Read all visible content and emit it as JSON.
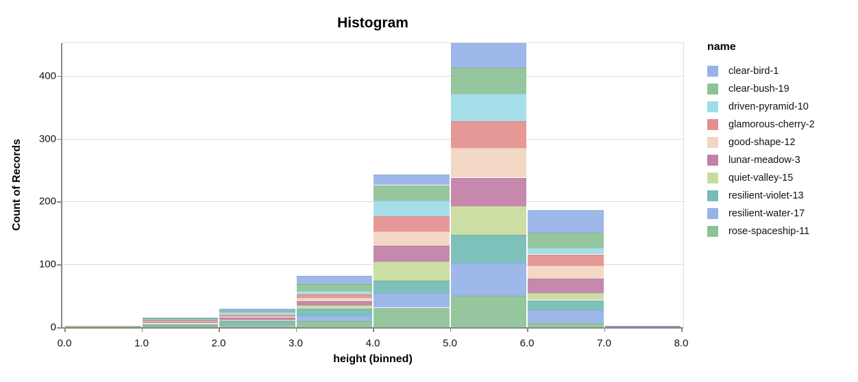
{
  "title": "Histogram",
  "axes": {
    "x": {
      "title": "height (binned)",
      "tick_labels": [
        "0.0",
        "1.0",
        "2.0",
        "3.0",
        "4.0",
        "5.0",
        "6.0",
        "7.0",
        "8.0"
      ]
    },
    "y": {
      "title": "Count of Records",
      "tick_labels": [
        "0",
        "100",
        "200",
        "300",
        "400"
      ],
      "tick_values": [
        0,
        100,
        200,
        300,
        400
      ]
    }
  },
  "legend": {
    "title": "name"
  },
  "colors": {
    "background": "#ffffff",
    "gridline": "#dddddd",
    "axis_line": "#888888"
  },
  "chart_data": {
    "type": "bar",
    "stacked": true,
    "title": "Histogram",
    "xlabel": "height (binned)",
    "ylabel": "Count of Records",
    "bin_edges": [
      0,
      1,
      2,
      3,
      4,
      5,
      6,
      7,
      8
    ],
    "categories": [
      "0-1",
      "1-2",
      "2-3",
      "3-4",
      "4-5",
      "5-6",
      "6-7",
      "7-8"
    ],
    "xlim": [
      0,
      8
    ],
    "ylim": [
      0,
      452
    ],
    "grid": true,
    "legend_position": "right",
    "bar_totals": [
      2,
      15,
      30,
      82,
      243,
      452,
      186,
      2
    ],
    "series": [
      {
        "name": "clear-bird-1",
        "color": "#95b3e8",
        "values": [
          0,
          1,
          4,
          13,
          17,
          39,
          36,
          1
        ]
      },
      {
        "name": "clear-bush-19",
        "color": "#8ec295",
        "values": [
          0,
          2,
          2,
          11,
          24,
          42,
          24,
          0
        ]
      },
      {
        "name": "driven-pyramid-10",
        "color": "#9fdde8",
        "values": [
          0,
          1,
          4,
          6,
          26,
          43,
          10,
          0
        ]
      },
      {
        "name": "glamorous-cherry-2",
        "color": "#e4908f",
        "values": [
          0,
          2,
          3,
          5,
          24,
          43,
          18,
          0
        ]
      },
      {
        "name": "good-shape-12",
        "color": "#f2d5c2",
        "values": [
          0,
          1,
          2,
          6,
          22,
          47,
          21,
          0
        ]
      },
      {
        "name": "lunar-meadow-3",
        "color": "#c27fa7",
        "values": [
          0,
          2,
          3,
          6,
          25,
          45,
          23,
          1
        ]
      },
      {
        "name": "quiet-valley-15",
        "color": "#c9dc9e",
        "values": [
          1,
          1,
          2,
          6,
          31,
          46,
          11,
          0
        ]
      },
      {
        "name": "resilient-violet-13",
        "color": "#74bcb6",
        "values": [
          0,
          2,
          3,
          10,
          20,
          45,
          16,
          0
        ]
      },
      {
        "name": "resilient-water-17",
        "color": "#95b3e8",
        "values": [
          0,
          1,
          3,
          9,
          23,
          52,
          20,
          0
        ]
      },
      {
        "name": "rose-spaceship-11",
        "color": "#8ec295",
        "values": [
          1,
          2,
          4,
          10,
          31,
          50,
          7,
          0
        ]
      }
    ],
    "stack_order_note": "bottom of stack = last legend entry, top of stack = first legend entry"
  }
}
